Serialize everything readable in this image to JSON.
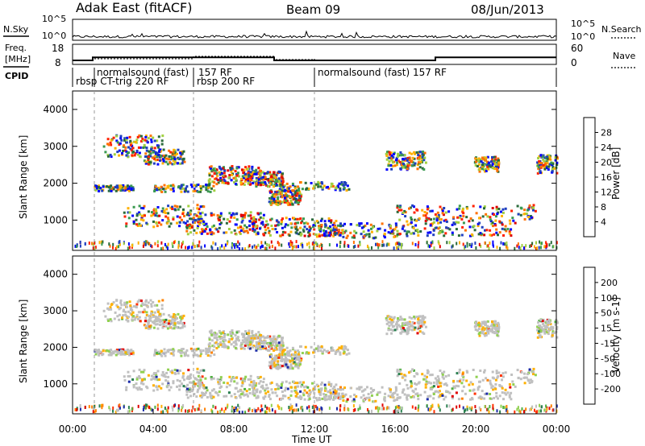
{
  "header": {
    "station": "Adak East (fitACF)",
    "beam": "Beam 09",
    "date": "08/Jun/2013"
  },
  "chart_data": [
    {
      "type": "line",
      "panel": "noise",
      "left_label": "N.Sky",
      "right_label": "N.Search",
      "left_ticks": [
        "10^5",
        "10^0"
      ],
      "right_ticks": [
        "10^5",
        "10^0"
      ]
    },
    {
      "type": "line",
      "panel": "frequency",
      "left_label_lines": [
        "Freq.",
        "[MHz]"
      ],
      "right_label": "Nave",
      "left_ticks": [
        "18",
        "8"
      ],
      "right_ticks": [
        "60",
        "0"
      ],
      "freq_steps": [
        {
          "x0": 0.0,
          "x1": 1.0,
          "v": 10
        },
        {
          "x0": 1.0,
          "x1": 10.0,
          "v": 11.5
        },
        {
          "x0": 10.0,
          "x1": 18.0,
          "v": 10
        },
        {
          "x0": 18.0,
          "x1": 24.0,
          "v": 11.5
        }
      ]
    },
    {
      "type": "table",
      "panel": "cpid",
      "label": "CPID",
      "programs": [
        {
          "start": 0.0,
          "text": "rbsp CT-trig 220 RF",
          "row": 2
        },
        {
          "start": 1.0,
          "text": "normalsound (fast)",
          "row": 1
        },
        {
          "start": 6.0,
          "text": "157 RF",
          "row": 1
        },
        {
          "start": 6.0,
          "text": "rbsp 200 RF",
          "row": 2
        },
        {
          "start": 12.0,
          "text": "normalsound (fast) 157 RF",
          "row": 1
        }
      ]
    },
    {
      "type": "heatmap",
      "panel": "power",
      "ylabel": "Slant Range [km]",
      "yticks": [
        "4000",
        "3000",
        "2000",
        "1000"
      ],
      "ylim": [
        180,
        4500
      ],
      "colorbar_label": "Power [dB]",
      "colorbar_ticks": [
        "28",
        "24",
        "20",
        "16",
        "12",
        "8",
        "4"
      ],
      "clim": [
        0,
        32
      ],
      "colors": [
        "#0000ff",
        "#1f3fbf",
        "#2a6a3a",
        "#3a9a50",
        "#a0d040",
        "#ffb000",
        "#ff7000",
        "#ff2000",
        "#e00000"
      ]
    },
    {
      "type": "heatmap",
      "panel": "velocity",
      "ylabel": "Slant Range [km]",
      "yticks": [
        "4000",
        "3000",
        "2000",
        "1000"
      ],
      "ylim": [
        180,
        4500
      ],
      "colorbar_label": "Velocity [m s-1]",
      "colorbar_ticks": [
        "200",
        "100",
        "50",
        "15",
        "-15",
        "-50",
        "-100",
        "-200"
      ],
      "colors": [
        "#1a2aa8",
        "#2a8050",
        "#4fb040",
        "#90d050",
        "#c0c0c0",
        "#ffb000",
        "#ff8000",
        "#ff3000",
        "#e00000"
      ],
      "xlabel": "Time UT",
      "xticks": [
        "00:00",
        "04:00",
        "08:00",
        "12:00",
        "16:00",
        "20:00",
        "00:00"
      ],
      "xlim_hours": [
        0,
        24
      ]
    }
  ]
}
